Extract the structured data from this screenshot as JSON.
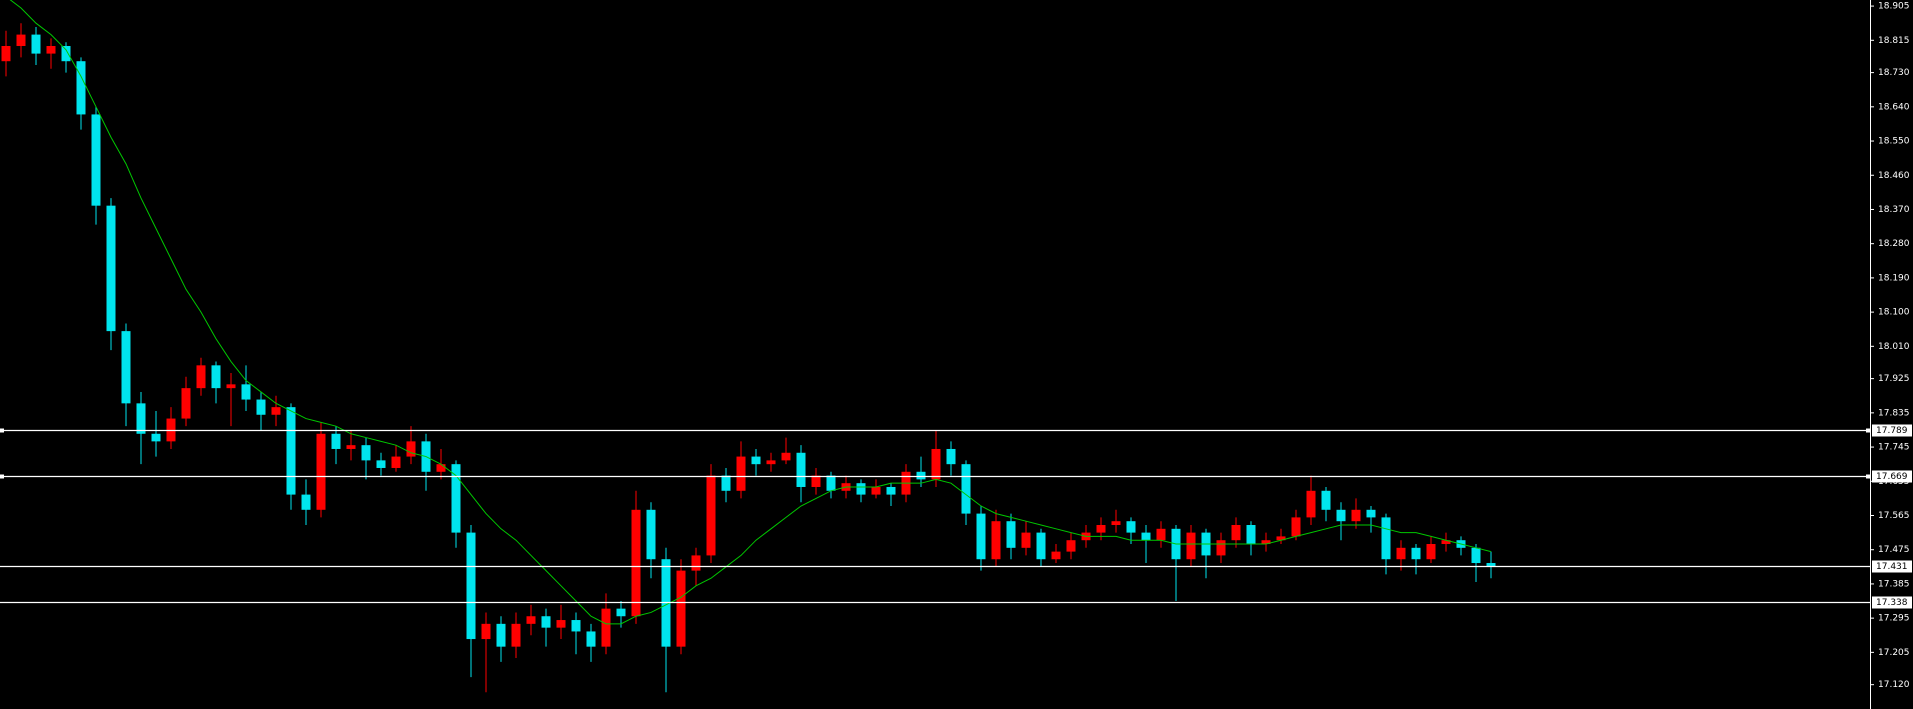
{
  "chart_data": {
    "type": "candlestick",
    "up_color": "#ff0000",
    "down_color": "#00e5ee",
    "ma_color": "#00c800",
    "level_color": "#ffffff",
    "ylim": [
      17.056,
      18.921
    ],
    "yticks": [
      18.905,
      18.815,
      {
        "value": 18.73,
        "label": "18.730"
      },
      {
        "value": 18.64,
        "label": "18.640"
      },
      {
        "value": 18.55,
        "label": "18.550"
      },
      {
        "value": 18.46,
        "label": "18.460"
      },
      {
        "value": 18.37,
        "label": "18.370"
      },
      {
        "value": 18.28,
        "label": "18.280"
      },
      {
        "value": 18.19,
        "label": "18.190"
      },
      {
        "value": 18.1,
        "label": "18.100"
      },
      {
        "value": 18.01,
        "label": "18.010"
      },
      17.925,
      17.835,
      17.745,
      17.655,
      17.565,
      17.475,
      17.385,
      17.295,
      17.205,
      {
        "value": 17.12,
        "label": "17.120"
      }
    ],
    "levels": [
      17.789,
      17.669,
      17.431,
      17.338
    ],
    "candles": [
      [
        18.76,
        18.84,
        18.72,
        18.8
      ],
      [
        18.8,
        18.86,
        18.77,
        18.83
      ],
      [
        18.83,
        18.85,
        18.75,
        18.78
      ],
      [
        18.78,
        18.82,
        18.74,
        18.8
      ],
      [
        18.8,
        18.81,
        18.73,
        18.76
      ],
      [
        18.76,
        18.77,
        18.58,
        18.62
      ],
      [
        18.62,
        18.64,
        18.33,
        18.38
      ],
      [
        18.38,
        18.4,
        18.0,
        18.05
      ],
      [
        18.05,
        18.07,
        17.8,
        17.86
      ],
      [
        17.86,
        17.89,
        17.7,
        17.78
      ],
      [
        17.78,
        17.84,
        17.72,
        17.76
      ],
      [
        17.76,
        17.85,
        17.74,
        17.82
      ],
      [
        17.82,
        17.93,
        17.8,
        17.9
      ],
      [
        17.9,
        17.98,
        17.88,
        17.96
      ],
      [
        17.96,
        17.97,
        17.86,
        17.9
      ],
      [
        17.9,
        17.94,
        17.8,
        17.91
      ],
      [
        17.91,
        17.96,
        17.84,
        17.87
      ],
      [
        17.87,
        17.89,
        17.79,
        17.83
      ],
      [
        17.83,
        17.88,
        17.8,
        17.85
      ],
      [
        17.85,
        17.86,
        17.58,
        17.62
      ],
      [
        17.62,
        17.66,
        17.54,
        17.58
      ],
      [
        17.58,
        17.81,
        17.56,
        17.78
      ],
      [
        17.78,
        17.8,
        17.7,
        17.74
      ],
      [
        17.74,
        17.79,
        17.71,
        17.75
      ],
      [
        17.75,
        17.77,
        17.66,
        17.71
      ],
      [
        17.71,
        17.73,
        17.67,
        17.69
      ],
      [
        17.69,
        17.75,
        17.68,
        17.72
      ],
      [
        17.72,
        17.8,
        17.7,
        17.76
      ],
      [
        17.76,
        17.78,
        17.63,
        17.68
      ],
      [
        17.68,
        17.74,
        17.66,
        17.7
      ],
      [
        17.7,
        17.71,
        17.48,
        17.52
      ],
      [
        17.52,
        17.54,
        17.14,
        17.24
      ],
      [
        17.24,
        17.31,
        17.1,
        17.28
      ],
      [
        17.28,
        17.3,
        17.18,
        17.22
      ],
      [
        17.22,
        17.31,
        17.19,
        17.28
      ],
      [
        17.28,
        17.33,
        17.25,
        17.3
      ],
      [
        17.3,
        17.32,
        17.22,
        17.27
      ],
      [
        17.27,
        17.33,
        17.24,
        17.29
      ],
      [
        17.29,
        17.31,
        17.2,
        17.26
      ],
      [
        17.26,
        17.28,
        17.18,
        17.22
      ],
      [
        17.22,
        17.36,
        17.2,
        17.32
      ],
      [
        17.32,
        17.34,
        17.27,
        17.3
      ],
      [
        17.3,
        17.63,
        17.28,
        17.58
      ],
      [
        17.58,
        17.6,
        17.4,
        17.45
      ],
      [
        17.45,
        17.48,
        17.1,
        17.22
      ],
      [
        17.22,
        17.45,
        17.2,
        17.42
      ],
      [
        17.42,
        17.48,
        17.38,
        17.46
      ],
      [
        17.46,
        17.7,
        17.44,
        17.67
      ],
      [
        17.67,
        17.69,
        17.6,
        17.63
      ],
      [
        17.63,
        17.76,
        17.61,
        17.72
      ],
      [
        17.72,
        17.74,
        17.67,
        17.7
      ],
      [
        17.7,
        17.73,
        17.68,
        17.71
      ],
      [
        17.71,
        17.77,
        17.7,
        17.73
      ],
      [
        17.73,
        17.75,
        17.6,
        17.64
      ],
      [
        17.64,
        17.69,
        17.62,
        17.67
      ],
      [
        17.67,
        17.68,
        17.61,
        17.63
      ],
      [
        17.63,
        17.67,
        17.61,
        17.65
      ],
      [
        17.65,
        17.66,
        17.6,
        17.62
      ],
      [
        17.62,
        17.66,
        17.61,
        17.64
      ],
      [
        17.64,
        17.65,
        17.59,
        17.62
      ],
      [
        17.62,
        17.7,
        17.6,
        17.68
      ],
      [
        17.68,
        17.72,
        17.64,
        17.66
      ],
      [
        17.66,
        17.79,
        17.64,
        17.74
      ],
      [
        17.74,
        17.76,
        17.67,
        17.7
      ],
      [
        17.7,
        17.71,
        17.54,
        17.57
      ],
      [
        17.57,
        17.59,
        17.42,
        17.45
      ],
      [
        17.45,
        17.58,
        17.43,
        17.55
      ],
      [
        17.55,
        17.57,
        17.45,
        17.48
      ],
      [
        17.48,
        17.55,
        17.46,
        17.52
      ],
      [
        17.52,
        17.53,
        17.43,
        17.45
      ],
      [
        17.45,
        17.49,
        17.44,
        17.47
      ],
      [
        17.47,
        17.52,
        17.45,
        17.5
      ],
      [
        17.5,
        17.54,
        17.48,
        17.52
      ],
      [
        17.52,
        17.56,
        17.5,
        17.54
      ],
      [
        17.54,
        17.58,
        17.52,
        17.55
      ],
      [
        17.55,
        17.56,
        17.49,
        17.52
      ],
      [
        17.52,
        17.54,
        17.44,
        17.5
      ],
      [
        17.5,
        17.55,
        17.48,
        17.53
      ],
      [
        17.53,
        17.54,
        17.34,
        17.45
      ],
      [
        17.45,
        17.54,
        17.43,
        17.52
      ],
      [
        17.52,
        17.53,
        17.4,
        17.46
      ],
      [
        17.46,
        17.52,
        17.44,
        17.5
      ],
      [
        17.5,
        17.56,
        17.48,
        17.54
      ],
      [
        17.54,
        17.55,
        17.46,
        17.49
      ],
      [
        17.49,
        17.52,
        17.47,
        17.5
      ],
      [
        17.5,
        17.53,
        17.49,
        17.51
      ],
      [
        17.51,
        17.58,
        17.5,
        17.56
      ],
      [
        17.56,
        17.67,
        17.54,
        17.63
      ],
      [
        17.63,
        17.64,
        17.55,
        17.58
      ],
      [
        17.58,
        17.6,
        17.5,
        17.55
      ],
      [
        17.55,
        17.61,
        17.53,
        17.58
      ],
      [
        17.58,
        17.59,
        17.52,
        17.56
      ],
      [
        17.56,
        17.57,
        17.41,
        17.45
      ],
      [
        17.45,
        17.5,
        17.42,
        17.48
      ],
      [
        17.48,
        17.49,
        17.41,
        17.45
      ],
      [
        17.45,
        17.51,
        17.44,
        17.49
      ],
      [
        17.49,
        17.52,
        17.47,
        17.5
      ],
      [
        17.5,
        17.51,
        17.46,
        17.48
      ],
      [
        17.48,
        17.49,
        17.39,
        17.44
      ],
      [
        17.44,
        17.47,
        17.4,
        17.43
      ]
    ],
    "ma": [
      18.93,
      18.9,
      18.86,
      18.83,
      18.79,
      18.72,
      18.64,
      18.56,
      18.49,
      18.4,
      18.32,
      18.24,
      18.16,
      18.1,
      18.03,
      17.97,
      17.92,
      17.89,
      17.86,
      17.84,
      17.82,
      17.81,
      17.8,
      17.78,
      17.77,
      17.76,
      17.75,
      17.73,
      17.72,
      17.7,
      17.67,
      17.62,
      17.57,
      17.53,
      17.5,
      17.46,
      17.42,
      17.38,
      17.34,
      17.3,
      17.28,
      17.28,
      17.3,
      17.31,
      17.33,
      17.35,
      17.38,
      17.4,
      17.43,
      17.46,
      17.5,
      17.53,
      17.56,
      17.59,
      17.61,
      17.63,
      17.64,
      17.64,
      17.64,
      17.65,
      17.65,
      17.65,
      17.66,
      17.65,
      17.62,
      17.59,
      17.57,
      17.56,
      17.55,
      17.54,
      17.53,
      17.52,
      17.51,
      17.51,
      17.51,
      17.5,
      17.5,
      17.5,
      17.49,
      17.49,
      17.49,
      17.49,
      17.49,
      17.49,
      17.49,
      17.5,
      17.51,
      17.52,
      17.53,
      17.54,
      17.54,
      17.54,
      17.53,
      17.52,
      17.52,
      17.51,
      17.5,
      17.49,
      17.48,
      17.47
    ]
  }
}
